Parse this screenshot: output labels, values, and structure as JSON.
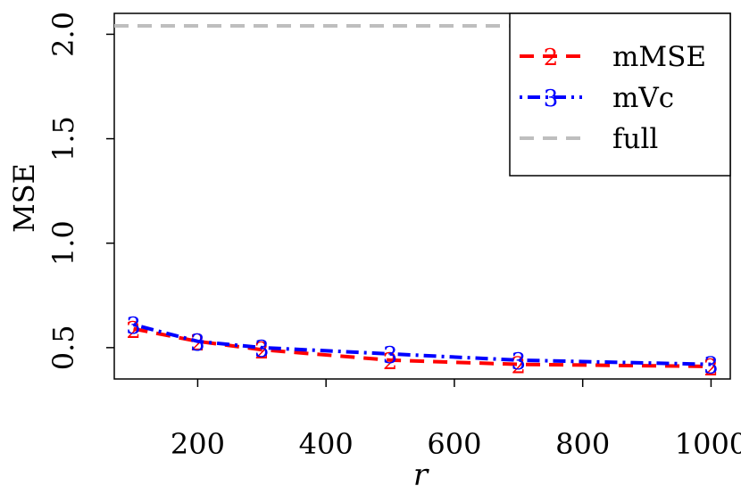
{
  "chart_data": {
    "type": "line",
    "title": "",
    "xlabel": "r",
    "ylabel": "MSE",
    "xlim": [
      70,
      1030
    ],
    "ylim": [
      0.35,
      2.1
    ],
    "x_ticks": [
      200,
      400,
      600,
      800,
      1000
    ],
    "y_ticks": [
      0.5,
      1.0,
      1.5,
      2.0
    ],
    "x_tick_labels": [
      "200",
      "400",
      "600",
      "800",
      "1000"
    ],
    "y_tick_labels": [
      "0.5",
      "1.0",
      "1.5",
      "2.0"
    ],
    "x": [
      100,
      200,
      300,
      500,
      700,
      1000
    ],
    "series": [
      {
        "name": "mMSE",
        "color": "#ff0000",
        "marker": "2",
        "line_style": "dashed",
        "values": [
          0.59,
          0.53,
          0.49,
          0.44,
          0.42,
          0.41
        ]
      },
      {
        "name": "mVc",
        "color": "#0000ff",
        "marker": "3",
        "line_style": "dotdash",
        "values": [
          0.61,
          0.53,
          0.5,
          0.47,
          0.44,
          0.42
        ]
      }
    ],
    "reference_lines": [
      {
        "name": "full",
        "color": "#bebebe",
        "line_style": "dashed",
        "y": 2.04
      }
    ],
    "legend_position": "top-right",
    "grid": false
  }
}
